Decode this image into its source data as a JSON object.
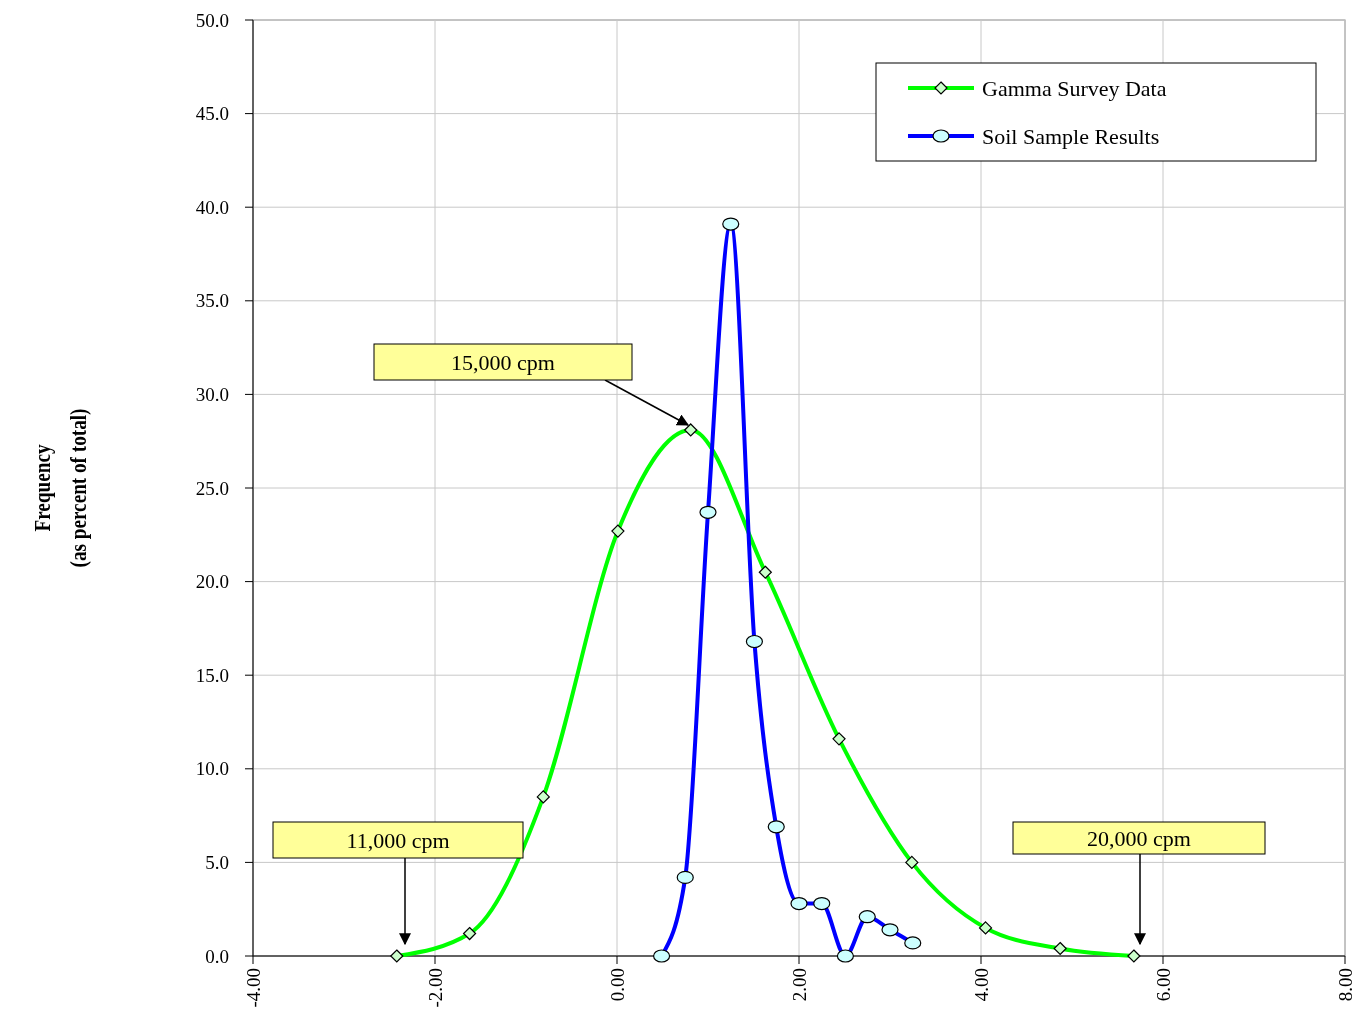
{
  "chart_data": {
    "type": "line",
    "ylabel": "Frequency\n(as percent of total)",
    "xlim": [
      -4,
      8
    ],
    "xticks": [
      {
        "value": -4,
        "label": "-4.00"
      },
      {
        "value": -2,
        "label": "-2.00"
      },
      {
        "value": 0,
        "label": "0.00"
      },
      {
        "value": 2,
        "label": "2.00"
      },
      {
        "value": 4,
        "label": "4.00"
      },
      {
        "value": 6,
        "label": "6.00"
      },
      {
        "value": 8,
        "label": "8.00"
      }
    ],
    "ylim": [
      0,
      50
    ],
    "yticks": [
      {
        "value": 0,
        "label": "0.0"
      },
      {
        "value": 5,
        "label": "5.0"
      },
      {
        "value": 10,
        "label": "10.0"
      },
      {
        "value": 15,
        "label": "15.0"
      },
      {
        "value": 20,
        "label": "20.0"
      },
      {
        "value": 25,
        "label": "25.0"
      },
      {
        "value": 30,
        "label": "30.0"
      },
      {
        "value": 35,
        "label": "35.0"
      },
      {
        "value": 40,
        "label": "40.0"
      },
      {
        "value": 45,
        "label": "45.0"
      },
      {
        "value": 50,
        "label": "50.0"
      }
    ],
    "grid": true,
    "legend": "top right",
    "series": [
      {
        "name": "Gamma Survey Data",
        "color": "#00ff00",
        "marker": "diamond",
        "x": [
          -2.42,
          -1.62,
          -0.81,
          0.01,
          0.81,
          1.63,
          2.44,
          3.24,
          4.05,
          4.87,
          5.68
        ],
        "values": [
          0,
          1.2,
          8.5,
          22.7,
          28.1,
          20.5,
          11.6,
          5.0,
          1.5,
          0.4,
          0
        ]
      },
      {
        "name": "Soil Sample Results",
        "color": "#0000ff",
        "marker": "circle",
        "x": [
          0.49,
          0.75,
          1.0,
          1.25,
          1.51,
          1.75,
          2.0,
          2.25,
          2.51,
          2.75,
          3.0,
          3.25
        ],
        "values": [
          0,
          4.2,
          23.7,
          39.1,
          16.8,
          6.9,
          2.8,
          2.8,
          0,
          2.1,
          1.4,
          0.7
        ]
      }
    ],
    "annotations": [
      "15,000 cpm",
      "11,000 cpm",
      "20,000 cpm"
    ]
  }
}
